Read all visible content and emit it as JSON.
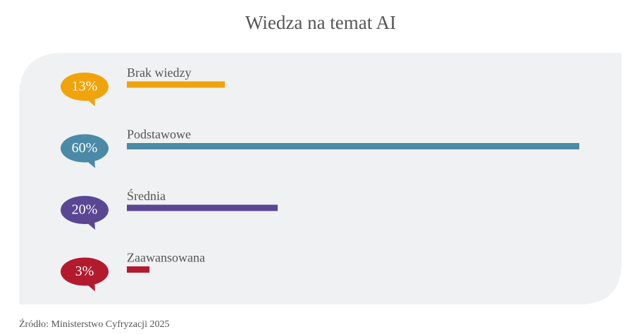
{
  "chart_data": {
    "type": "bar",
    "orientation": "horizontal",
    "title": "Wiedza na temat AI",
    "categories": [
      "Brak wiedzy",
      "Podstawowe",
      "Średnia",
      "Zaawansowana"
    ],
    "values": [
      13,
      60,
      20,
      3
    ],
    "value_labels": [
      "13%",
      "60%",
      "20%",
      "3%"
    ],
    "colors": [
      "#f0a30a",
      "#4a8aa6",
      "#5a4794",
      "#b31a2e"
    ],
    "source": "Źródło: Ministerstwo Cyfryzacji 2025"
  }
}
